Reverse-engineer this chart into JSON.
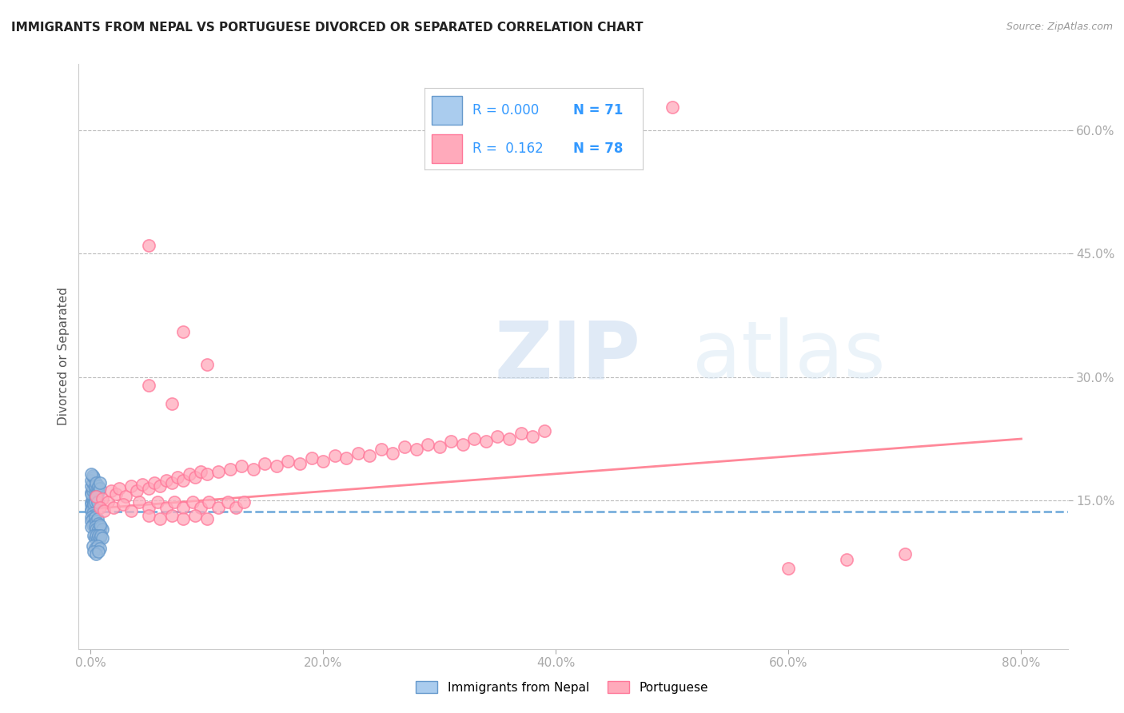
{
  "title": "IMMIGRANTS FROM NEPAL VS PORTUGUESE DIVORCED OR SEPARATED CORRELATION CHART",
  "source": "Source: ZipAtlas.com",
  "ylabel": "Divorced or Separated",
  "xlabel_ticks": [
    "0.0%",
    "20.0%",
    "40.0%",
    "60.0%",
    "80.0%"
  ],
  "xlabel_vals": [
    0.0,
    0.2,
    0.4,
    0.6,
    0.8
  ],
  "ylabel_ticks": [
    "15.0%",
    "30.0%",
    "45.0%",
    "60.0%"
  ],
  "ylabel_vals": [
    0.15,
    0.3,
    0.45,
    0.6
  ],
  "xlim": [
    -0.01,
    0.84
  ],
  "ylim": [
    -0.03,
    0.68
  ],
  "legend_bottom": [
    "Immigrants from Nepal",
    "Portuguese"
  ],
  "nepal_color": "#6699cc",
  "nepal_fill": "#99bbdd",
  "portuguese_color": "#ff7799",
  "portuguese_fill": "#ffaabc",
  "nepal_line_color": "#7ab0dd",
  "portuguese_line_color": "#ff8899",
  "watermark_zip": "ZIP",
  "watermark_atlas": "atlas",
  "nepal_scatter": [
    [
      0.001,
      0.148
    ],
    [
      0.002,
      0.152
    ],
    [
      0.001,
      0.145
    ],
    [
      0.003,
      0.155
    ],
    [
      0.001,
      0.14
    ],
    [
      0.002,
      0.143
    ],
    [
      0.001,
      0.138
    ],
    [
      0.002,
      0.15
    ],
    [
      0.003,
      0.148
    ],
    [
      0.001,
      0.16
    ],
    [
      0.002,
      0.165
    ],
    [
      0.001,
      0.158
    ],
    [
      0.002,
      0.162
    ],
    [
      0.003,
      0.17
    ],
    [
      0.001,
      0.168
    ],
    [
      0.002,
      0.172
    ],
    [
      0.001,
      0.175
    ],
    [
      0.003,
      0.178
    ],
    [
      0.002,
      0.18
    ],
    [
      0.001,
      0.182
    ],
    [
      0.004,
      0.155
    ],
    [
      0.005,
      0.152
    ],
    [
      0.004,
      0.162
    ],
    [
      0.005,
      0.165
    ],
    [
      0.004,
      0.168
    ],
    [
      0.005,
      0.172
    ],
    [
      0.006,
      0.158
    ],
    [
      0.006,
      0.165
    ],
    [
      0.007,
      0.162
    ],
    [
      0.007,
      0.168
    ],
    [
      0.008,
      0.165
    ],
    [
      0.008,
      0.172
    ],
    [
      0.003,
      0.145
    ],
    [
      0.004,
      0.148
    ],
    [
      0.005,
      0.155
    ],
    [
      0.006,
      0.148
    ],
    [
      0.002,
      0.135
    ],
    [
      0.003,
      0.132
    ],
    [
      0.001,
      0.13
    ],
    [
      0.002,
      0.128
    ],
    [
      0.001,
      0.125
    ],
    [
      0.003,
      0.122
    ],
    [
      0.002,
      0.12
    ],
    [
      0.001,
      0.118
    ],
    [
      0.004,
      0.13
    ],
    [
      0.005,
      0.125
    ],
    [
      0.006,
      0.128
    ],
    [
      0.007,
      0.122
    ],
    [
      0.004,
      0.118
    ],
    [
      0.005,
      0.115
    ],
    [
      0.006,
      0.112
    ],
    [
      0.007,
      0.115
    ],
    [
      0.008,
      0.112
    ],
    [
      0.009,
      0.118
    ],
    [
      0.01,
      0.115
    ],
    [
      0.008,
      0.12
    ],
    [
      0.003,
      0.108
    ],
    [
      0.004,
      0.105
    ],
    [
      0.005,
      0.108
    ],
    [
      0.006,
      0.105
    ],
    [
      0.007,
      0.108
    ],
    [
      0.008,
      0.105
    ],
    [
      0.009,
      0.108
    ],
    [
      0.01,
      0.105
    ],
    [
      0.002,
      0.095
    ],
    [
      0.004,
      0.092
    ],
    [
      0.006,
      0.095
    ],
    [
      0.008,
      0.092
    ],
    [
      0.003,
      0.088
    ],
    [
      0.005,
      0.085
    ],
    [
      0.007,
      0.088
    ]
  ],
  "portuguese_scatter": [
    [
      0.005,
      0.155
    ],
    [
      0.01,
      0.152
    ],
    [
      0.015,
      0.148
    ],
    [
      0.018,
      0.162
    ],
    [
      0.022,
      0.158
    ],
    [
      0.025,
      0.165
    ],
    [
      0.03,
      0.155
    ],
    [
      0.035,
      0.168
    ],
    [
      0.04,
      0.162
    ],
    [
      0.045,
      0.17
    ],
    [
      0.05,
      0.165
    ],
    [
      0.055,
      0.172
    ],
    [
      0.06,
      0.168
    ],
    [
      0.065,
      0.175
    ],
    [
      0.07,
      0.172
    ],
    [
      0.075,
      0.178
    ],
    [
      0.08,
      0.175
    ],
    [
      0.085,
      0.182
    ],
    [
      0.09,
      0.178
    ],
    [
      0.095,
      0.185
    ],
    [
      0.1,
      0.182
    ],
    [
      0.11,
      0.185
    ],
    [
      0.12,
      0.188
    ],
    [
      0.13,
      0.192
    ],
    [
      0.14,
      0.188
    ],
    [
      0.15,
      0.195
    ],
    [
      0.16,
      0.192
    ],
    [
      0.17,
      0.198
    ],
    [
      0.18,
      0.195
    ],
    [
      0.19,
      0.202
    ],
    [
      0.2,
      0.198
    ],
    [
      0.21,
      0.205
    ],
    [
      0.22,
      0.202
    ],
    [
      0.23,
      0.208
    ],
    [
      0.24,
      0.205
    ],
    [
      0.25,
      0.212
    ],
    [
      0.26,
      0.208
    ],
    [
      0.27,
      0.215
    ],
    [
      0.28,
      0.212
    ],
    [
      0.29,
      0.218
    ],
    [
      0.3,
      0.215
    ],
    [
      0.31,
      0.222
    ],
    [
      0.32,
      0.218
    ],
    [
      0.33,
      0.225
    ],
    [
      0.34,
      0.222
    ],
    [
      0.35,
      0.228
    ],
    [
      0.36,
      0.225
    ],
    [
      0.37,
      0.232
    ],
    [
      0.38,
      0.228
    ],
    [
      0.39,
      0.235
    ],
    [
      0.008,
      0.142
    ],
    [
      0.012,
      0.138
    ],
    [
      0.02,
      0.142
    ],
    [
      0.028,
      0.145
    ],
    [
      0.035,
      0.138
    ],
    [
      0.042,
      0.148
    ],
    [
      0.05,
      0.142
    ],
    [
      0.058,
      0.148
    ],
    [
      0.065,
      0.142
    ],
    [
      0.072,
      0.148
    ],
    [
      0.08,
      0.142
    ],
    [
      0.088,
      0.148
    ],
    [
      0.095,
      0.142
    ],
    [
      0.102,
      0.148
    ],
    [
      0.11,
      0.142
    ],
    [
      0.118,
      0.148
    ],
    [
      0.125,
      0.142
    ],
    [
      0.132,
      0.148
    ],
    [
      0.05,
      0.132
    ],
    [
      0.06,
      0.128
    ],
    [
      0.07,
      0.132
    ],
    [
      0.08,
      0.128
    ],
    [
      0.09,
      0.132
    ],
    [
      0.1,
      0.128
    ],
    [
      0.5,
      0.628
    ],
    [
      0.05,
      0.46
    ],
    [
      0.08,
      0.355
    ],
    [
      0.1,
      0.315
    ],
    [
      0.05,
      0.29
    ],
    [
      0.07,
      0.268
    ],
    [
      0.6,
      0.068
    ],
    [
      0.65,
      0.078
    ],
    [
      0.7,
      0.085
    ]
  ]
}
